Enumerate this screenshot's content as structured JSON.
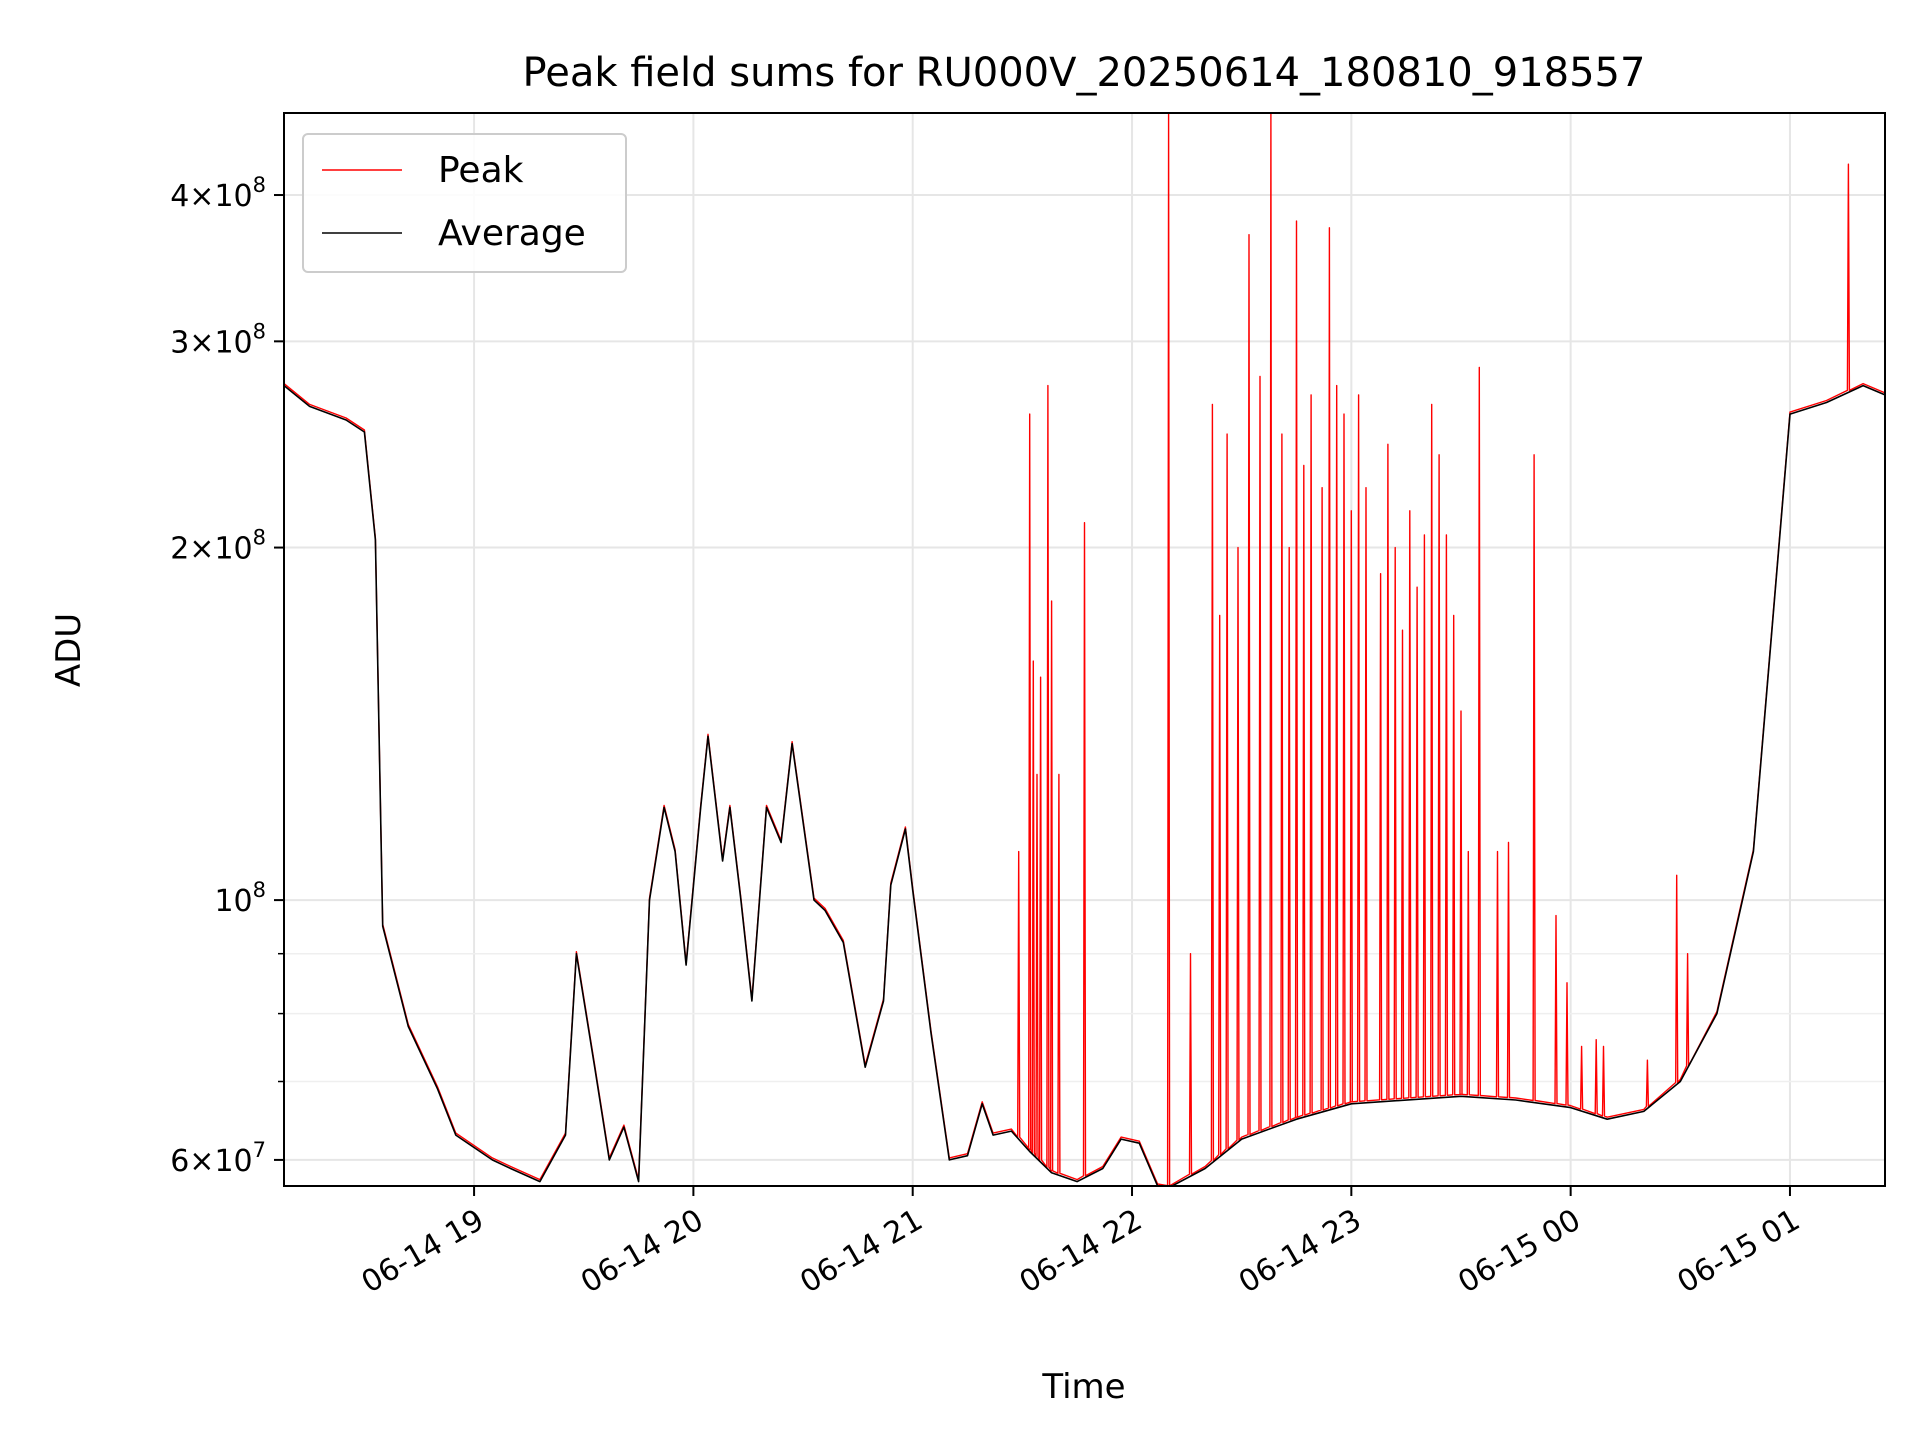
{
  "chart_data": {
    "type": "line",
    "title": "Peak field sums for RU000V_20250614_180810_918557",
    "xlabel": "Time",
    "ylabel": "ADU",
    "yscale": "log",
    "ylim": [
      57000000,
      470000000
    ],
    "xlim": [
      "2025-06-14 18:08",
      "2025-06-15 01:26"
    ],
    "grid": true,
    "legend_position": "top-left",
    "x_ticks": [
      {
        "value": "2025-06-14 19:00",
        "label": "06-14 19"
      },
      {
        "value": "2025-06-14 20:00",
        "label": "06-14 20"
      },
      {
        "value": "2025-06-14 21:00",
        "label": "06-14 21"
      },
      {
        "value": "2025-06-14 22:00",
        "label": "06-14 22"
      },
      {
        "value": "2025-06-14 23:00",
        "label": "06-14 23"
      },
      {
        "value": "2025-06-15 00:00",
        "label": "06-15 00"
      },
      {
        "value": "2025-06-15 01:00",
        "label": "06-15 01"
      }
    ],
    "y_ticks": [
      {
        "value": 60000000,
        "mant": "6",
        "exp": "7"
      },
      {
        "value": 100000000,
        "mant": "",
        "exp": "8"
      },
      {
        "value": 200000000,
        "mant": "2",
        "exp": "8"
      },
      {
        "value": 300000000,
        "mant": "3",
        "exp": "8"
      },
      {
        "value": 400000000,
        "mant": "4",
        "exp": "8"
      }
    ],
    "y_minor_ticks": [
      70000000,
      80000000,
      90000000
    ],
    "series": [
      {
        "name": "Average",
        "color": "#000000",
        "x": [
          "2025-06-14 18:08",
          "2025-06-14 18:15",
          "2025-06-14 18:25",
          "2025-06-14 18:30",
          "2025-06-14 18:33",
          "2025-06-14 18:35",
          "2025-06-14 18:42",
          "2025-06-14 18:50",
          "2025-06-14 18:55",
          "2025-06-14 19:05",
          "2025-06-14 19:10",
          "2025-06-14 19:18",
          "2025-06-14 19:25",
          "2025-06-14 19:28",
          "2025-06-14 19:33",
          "2025-06-14 19:37",
          "2025-06-14 19:41",
          "2025-06-14 19:45",
          "2025-06-14 19:48",
          "2025-06-14 19:52",
          "2025-06-14 19:55",
          "2025-06-14 19:58",
          "2025-06-14 20:02",
          "2025-06-14 20:04",
          "2025-06-14 20:08",
          "2025-06-14 20:10",
          "2025-06-14 20:13",
          "2025-06-14 20:16",
          "2025-06-14 20:20",
          "2025-06-14 20:24",
          "2025-06-14 20:27",
          "2025-06-14 20:33",
          "2025-06-14 20:36",
          "2025-06-14 20:41",
          "2025-06-14 20:47",
          "2025-06-14 20:52",
          "2025-06-14 20:54",
          "2025-06-14 20:58",
          "2025-06-14 21:00",
          "2025-06-14 21:05",
          "2025-06-14 21:10",
          "2025-06-14 21:15",
          "2025-06-14 21:19",
          "2025-06-14 21:22",
          "2025-06-14 21:27",
          "2025-06-14 21:32",
          "2025-06-14 21:38",
          "2025-06-14 21:45",
          "2025-06-14 21:52",
          "2025-06-14 21:57",
          "2025-06-14 22:02",
          "2025-06-14 22:07",
          "2025-06-14 22:10",
          "2025-06-14 22:20",
          "2025-06-14 22:30",
          "2025-06-14 22:45",
          "2025-06-14 23:00",
          "2025-06-14 23:30",
          "2025-06-14 23:45",
          "2025-06-15 00:00",
          "2025-06-15 00:10",
          "2025-06-15 00:20",
          "2025-06-15 00:30",
          "2025-06-15 00:40",
          "2025-06-15 00:50",
          "2025-06-15 01:00",
          "2025-06-15 01:10",
          "2025-06-15 01:20",
          "2025-06-15 01:26"
        ],
        "values": [
          275000000,
          264000000,
          257000000,
          251000000,
          203000000,
          95000000,
          78000000,
          69000000,
          63000000,
          60000000,
          59000000,
          57500000,
          63000000,
          90000000,
          72000000,
          60000000,
          64000000,
          57500000,
          100000000,
          120000000,
          110000000,
          88000000,
          120000000,
          138000000,
          108000000,
          120000000,
          100000000,
          82000000,
          120000000,
          112000000,
          136000000,
          100000000,
          98000000,
          92000000,
          72000000,
          82000000,
          103000000,
          115000000,
          102000000,
          77000000,
          60000000,
          60500000,
          67000000,
          63000000,
          63500000,
          61000000,
          58500000,
          57500000,
          59000000,
          62500000,
          62000000,
          57000000,
          56800000,
          59000000,
          62500000,
          65000000,
          67000000,
          68000000,
          67500000,
          66500000,
          65000000,
          66000000,
          70000000,
          80000000,
          110000000,
          260000000,
          266000000,
          275000000,
          270000000
        ]
      },
      {
        "name": "Peak",
        "color": "#ff0000",
        "baseline": "Average",
        "spikes_x": [
          "2025-06-14 21:29",
          "2025-06-14 21:32",
          "2025-06-14 21:33",
          "2025-06-14 21:34",
          "2025-06-14 21:35",
          "2025-06-14 21:37",
          "2025-06-14 21:38",
          "2025-06-14 21:40",
          "2025-06-14 21:47",
          "2025-06-14 22:10",
          "2025-06-14 22:16",
          "2025-06-14 22:22",
          "2025-06-14 22:24",
          "2025-06-14 22:26",
          "2025-06-14 22:29",
          "2025-06-14 22:32",
          "2025-06-14 22:35",
          "2025-06-14 22:38",
          "2025-06-14 22:41",
          "2025-06-14 22:43",
          "2025-06-14 22:45",
          "2025-06-14 22:47",
          "2025-06-14 22:49",
          "2025-06-14 22:52",
          "2025-06-14 22:54",
          "2025-06-14 22:56",
          "2025-06-14 22:58",
          "2025-06-14 23:00",
          "2025-06-14 23:02",
          "2025-06-14 23:04",
          "2025-06-14 23:08",
          "2025-06-14 23:10",
          "2025-06-14 23:12",
          "2025-06-14 23:14",
          "2025-06-14 23:16",
          "2025-06-14 23:18",
          "2025-06-14 23:20",
          "2025-06-14 23:22",
          "2025-06-14 23:24",
          "2025-06-14 23:26",
          "2025-06-14 23:28",
          "2025-06-14 23:30",
          "2025-06-14 23:32",
          "2025-06-14 23:35",
          "2025-06-14 23:40",
          "2025-06-14 23:43",
          "2025-06-14 23:50",
          "2025-06-14 23:56",
          "2025-06-14 23:59",
          "2025-06-15 00:03",
          "2025-06-15 00:07",
          "2025-06-15 00:09",
          "2025-06-15 00:21",
          "2025-06-15 00:29",
          "2025-06-15 00:32",
          "2025-06-15 01:16"
        ],
        "spikes_values": [
          110000000,
          260000000,
          160000000,
          128000000,
          155000000,
          275000000,
          180000000,
          128000000,
          210000000,
          470000000,
          90000000,
          265000000,
          175000000,
          250000000,
          200000000,
          370000000,
          280000000,
          470000000,
          250000000,
          200000000,
          380000000,
          235000000,
          270000000,
          225000000,
          375000000,
          275000000,
          260000000,
          215000000,
          270000000,
          225000000,
          190000000,
          245000000,
          200000000,
          170000000,
          215000000,
          185000000,
          205000000,
          265000000,
          240000000,
          205000000,
          175000000,
          145000000,
          110000000,
          285000000,
          110000000,
          112000000,
          240000000,
          97000000,
          85000000,
          75000000,
          76000000,
          75000000,
          73000000,
          105000000,
          90000000,
          425000000
        ]
      }
    ]
  }
}
